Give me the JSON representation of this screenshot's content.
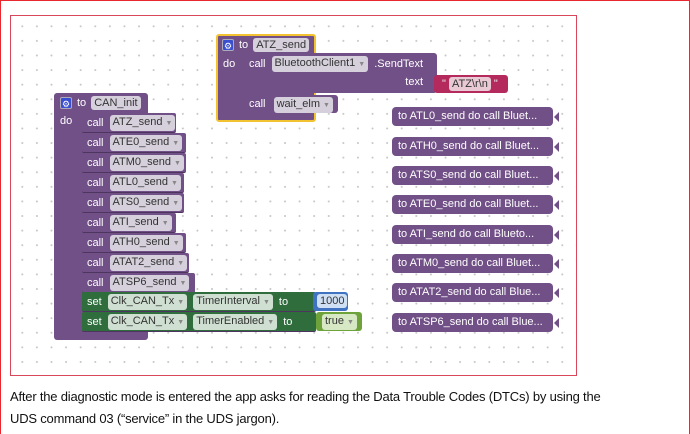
{
  "atz_block": {
    "to": "to",
    "name": "ATZ_send",
    "do": "do",
    "call": "call",
    "component": "BluetoothClient1",
    "method": ".SendText",
    "text_label": "text",
    "text_value": "ATZ\\r\\n",
    "call2": "call",
    "wait": "wait_elm"
  },
  "can_init": {
    "to": "to",
    "name": "CAN_init",
    "do": "do",
    "calls": [
      {
        "kw": "call",
        "proc": "ATZ_send"
      },
      {
        "kw": "call",
        "proc": "ATE0_send"
      },
      {
        "kw": "call",
        "proc": "ATM0_send"
      },
      {
        "kw": "call",
        "proc": "ATL0_send"
      },
      {
        "kw": "call",
        "proc": "ATS0_send"
      },
      {
        "kw": "call",
        "proc": "ATI_send"
      },
      {
        "kw": "call",
        "proc": "ATH0_send"
      },
      {
        "kw": "call",
        "proc": "ATAT2_send"
      },
      {
        "kw": "call",
        "proc": "ATSP6_send"
      }
    ],
    "sets": [
      {
        "kw": "set",
        "component": "Clk_CAN_Tx",
        "property": "TimerInterval",
        "to": "to",
        "value": "1000"
      },
      {
        "kw": "set",
        "component": "Clk_CAN_Tx",
        "property": "TimerEnabled",
        "to": "to",
        "value": "true"
      }
    ]
  },
  "collapsed": [
    "to ATL0_send do call  Bluet...",
    "to ATH0_send do call  Bluet...",
    "to ATS0_send do call  Bluet...",
    "to ATE0_send do call  Bluet...",
    "to ATI_send do call  Blueto...",
    "to ATM0_send do call  Bluet...",
    "to ATAT2_send do call  Blue...",
    "to ATSP6_send do call  Blue..."
  ],
  "caption": {
    "line1": "After the diagnostic mode is entered the app asks for reading the Data Trouble Codes (DTCs) by using the",
    "line2": "UDS command 03 (“service” in the UDS jargon)."
  }
}
